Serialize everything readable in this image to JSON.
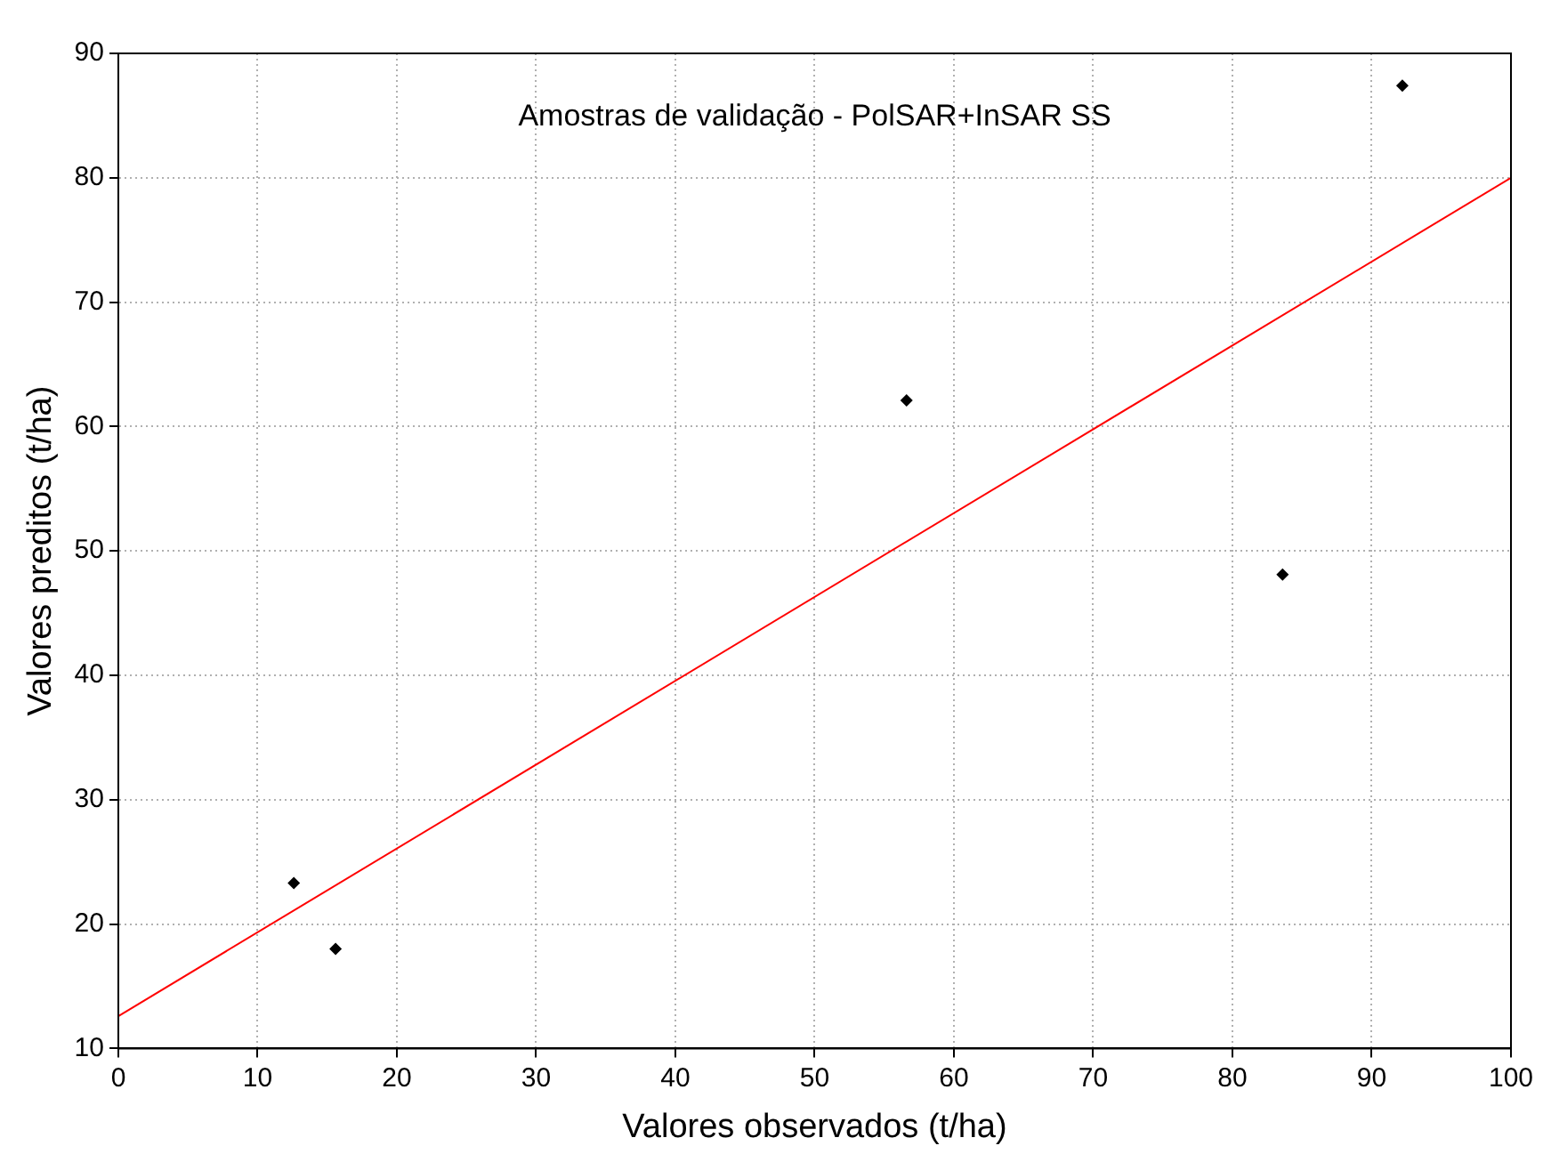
{
  "chart_data": {
    "type": "scatter",
    "title": "Amostras de validação - PolSAR+InSAR SS",
    "xlabel": "Valores observados (t/ha)",
    "ylabel": "Valores preditos (t/ha)",
    "series": [
      {
        "color": "#000000",
        "marker": "diamond",
        "x": [
          12.6,
          15.6,
          56.6,
          83.6,
          92.2
        ],
        "values": [
          23.3,
          18.0,
          62.1,
          48.1,
          87.4
        ]
      },
      {
        "type": "line",
        "color": "#ff0000",
        "marker": "none",
        "line_style": "solid",
        "x": [
          0,
          100
        ],
        "values": [
          12.6,
          80
        ]
      }
    ],
    "xlim": [
      0,
      100
    ],
    "xticks": [
      0,
      10,
      20,
      30,
      40,
      50,
      60,
      70,
      80,
      90,
      100
    ],
    "ylim": [
      10,
      90
    ],
    "yticks": [
      10,
      20,
      30,
      40,
      50,
      60,
      70,
      80,
      90
    ],
    "grid": true,
    "legend": false
  }
}
